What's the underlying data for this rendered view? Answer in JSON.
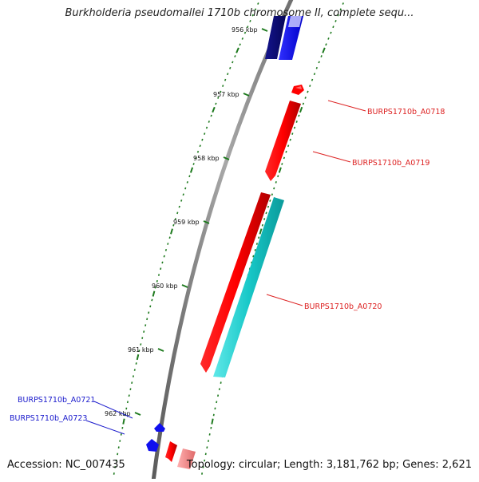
{
  "title": "Burkholderia pseudomallei 1710b chromosome II, complete sequ...",
  "accession": "Accession: NC_007435",
  "summary": "Topology: circular; Length: 3,181,762 bp; Genes: 2,621",
  "ticks": [
    {
      "label": "956 kbp",
      "kbp": 956
    },
    {
      "label": "957 kbp",
      "kbp": 957
    },
    {
      "label": "958 kbp",
      "kbp": 958
    },
    {
      "label": "959 kbp",
      "kbp": 959
    },
    {
      "label": "960 kbp",
      "kbp": 960
    },
    {
      "label": "961 kbp",
      "kbp": 961
    },
    {
      "label": "962 kbp",
      "kbp": 962
    }
  ],
  "genes": [
    {
      "name": "BURPS1710b_A0718",
      "color": "#dd2222"
    },
    {
      "name": "BURPS1710b_A0719",
      "color": "#dd2222"
    },
    {
      "name": "BURPS1710b_A0720",
      "color": "#dd2222"
    },
    {
      "name": "BURPS1710b_A0721",
      "color": "#1a1acc"
    },
    {
      "name": "BURPS1710b_A0723",
      "color": "#1a1acc"
    }
  ],
  "colors": {
    "backbone": "#8a8a8a",
    "tick_dots": "#1e7a1e",
    "forward_red": "#ff0000",
    "forward_red_light": "#f08080",
    "cyan": "#14c8c8",
    "blue": "#1010ee",
    "navy": "#0a0a7a"
  }
}
